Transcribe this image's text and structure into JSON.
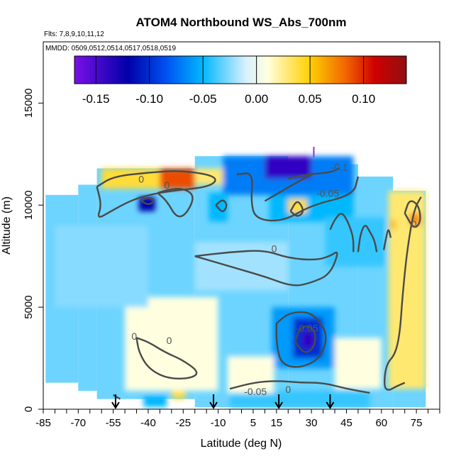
{
  "colors": {
    "ramp": [
      "#7a10e8",
      "#0000a8",
      "#0050f0",
      "#00b8ff",
      "#d8f0ff",
      "#ffffe0",
      "#ffd000",
      "#f06000",
      "#d00000",
      "#901010"
    ],
    "contour": "#4a4a4a",
    "arrow": "#000000",
    "marker": "#8a3cc8"
  },
  "chart_data": {
    "type": "heatmap",
    "title": "ATOM4 Northbound WS_Abs_700nm",
    "flights_note": "Flts: 7,8,9,10,11,12",
    "dates_note": "MMDD: 0509,0512,0514,0517,0518,0519",
    "xlabel": "Latitude (deg N)",
    "ylabel": "Altitude (m)",
    "xlim": [
      -85,
      85
    ],
    "ylim": [
      0,
      18000
    ],
    "xticks": [
      -85,
      -70,
      -55,
      -40,
      -25,
      -10,
      5,
      15,
      30,
      45,
      60,
      75
    ],
    "yticks": [
      0,
      5000,
      10000,
      15000
    ],
    "colorbar": {
      "range": [
        -0.17,
        0.14
      ],
      "ticks": [
        -0.15,
        -0.1,
        -0.05,
        0.0,
        0.05,
        0.1
      ],
      "tick_labels": [
        "-0.15",
        "-0.10",
        "-0.05",
        "0.00",
        "0.05",
        "0.10"
      ]
    },
    "envelope": [
      {
        "x": [
          -84,
          -70
        ],
        "top": 10500,
        "bottom": 1300
      },
      {
        "x": [
          -70,
          -62
        ],
        "top": 11000,
        "bottom": 900
      },
      {
        "x": [
          -62,
          -20
        ],
        "top": 11800,
        "bottom": 500
      },
      {
        "x": [
          -20,
          20
        ],
        "top": 12400,
        "bottom": 100
      },
      {
        "x": [
          20,
          50
        ],
        "top": 12000,
        "bottom": 100
      },
      {
        "x": [
          50,
          65
        ],
        "top": 11400,
        "bottom": 100
      },
      {
        "x": [
          65,
          79
        ],
        "top": 10700,
        "bottom": 100
      }
    ],
    "features": [
      {
        "x": [
          -60,
          -20
        ],
        "y": [
          10800,
          11800
        ],
        "value": 0.04
      },
      {
        "x": [
          -35,
          -20
        ],
        "y": [
          10800,
          11800
        ],
        "value": 0.09
      },
      {
        "x": [
          -20,
          -8
        ],
        "y": [
          11000,
          11800
        ],
        "value": 0.03
      },
      {
        "x": [
          -8,
          48
        ],
        "y": [
          10500,
          12400
        ],
        "value": -0.07
      },
      {
        "x": [
          10,
          30
        ],
        "y": [
          11300,
          12400
        ],
        "value": -0.14
      },
      {
        "x": [
          -14,
          -6
        ],
        "y": [
          9200,
          10600
        ],
        "value": -0.05
      },
      {
        "x": [
          -44,
          -37
        ],
        "y": [
          9700,
          10400
        ],
        "value": -0.12
      },
      {
        "x": [
          12,
          48
        ],
        "y": [
          9200,
          10500
        ],
        "value": -0.05
      },
      {
        "x": [
          20,
          28
        ],
        "y": [
          9600,
          10300
        ],
        "value": 0.04
      },
      {
        "x": [
          36,
          62
        ],
        "y": [
          7000,
          9400
        ],
        "value": -0.04
      },
      {
        "x": [
          63,
          79
        ],
        "y": [
          1000,
          10700
        ],
        "value": 0.03
      },
      {
        "x": [
          64,
          66
        ],
        "y": [
          8800,
          9300
        ],
        "value": 0.06
      },
      {
        "x": [
          72,
          77
        ],
        "y": [
          9000,
          9600
        ],
        "value": 0.07
      },
      {
        "x": [
          13,
          40
        ],
        "y": [
          2000,
          5000
        ],
        "value": -0.06
      },
      {
        "x": [
          22,
          35
        ],
        "y": [
          2500,
          4500
        ],
        "value": -0.1
      },
      {
        "x": [
          26,
          31
        ],
        "y": [
          3000,
          3800
        ],
        "value": -0.14
      },
      {
        "x": [
          -42,
          -32
        ],
        "y": [
          100,
          700
        ],
        "value": -0.05
      },
      {
        "x": [
          -5,
          55
        ],
        "y": [
          100,
          900
        ],
        "value": -0.04
      },
      {
        "x": [
          -30,
          -24
        ],
        "y": [
          500,
          900
        ],
        "value": 0.04
      },
      {
        "x": [
          -50,
          -10
        ],
        "y": [
          900,
          5500
        ],
        "value": 0.01
      },
      {
        "x": [
          -6,
          14
        ],
        "y": [
          800,
          2600
        ],
        "value": 0.01
      },
      {
        "x": [
          40,
          60
        ],
        "y": [
          1000,
          3500
        ],
        "value": 0.01
      },
      {
        "x": [
          -20,
          20
        ],
        "y": [
          5800,
          8200
        ],
        "value": -0.02
      },
      {
        "x": [
          -80,
          -40
        ],
        "y": [
          5000,
          9000
        ],
        "value": -0.025
      }
    ],
    "contours": [
      {
        "level": "0",
        "points": [
          [
            -62,
            10900
          ],
          [
            -55,
            11400
          ],
          [
            -40,
            11600
          ],
          [
            -25,
            11700
          ],
          [
            -10,
            11400
          ],
          [
            -13,
            10900
          ],
          [
            -30,
            10700
          ],
          [
            -40,
            10500
          ],
          [
            -48,
            10200
          ],
          [
            -56,
            9700
          ],
          [
            -62,
            9300
          ],
          [
            -60,
            10000
          ],
          [
            -62,
            10900
          ]
        ]
      },
      {
        "level": "0",
        "points": [
          [
            -43,
            10200
          ],
          [
            -40,
            10000
          ],
          [
            -37,
            10200
          ],
          [
            -40,
            10400
          ],
          [
            -43,
            10200
          ]
        ]
      },
      {
        "level": "0",
        "points": [
          [
            -36,
            10600
          ],
          [
            -32,
            10200
          ],
          [
            -28,
            9400
          ],
          [
            -24,
            9500
          ],
          [
            -20,
            10400
          ],
          [
            -24,
            10800
          ],
          [
            -30,
            10800
          ],
          [
            -36,
            10600
          ]
        ]
      },
      {
        "level": "0",
        "points": [
          [
            -11,
            10000
          ],
          [
            -8,
            9600
          ],
          [
            -6,
            10000
          ],
          [
            -8,
            10300
          ],
          [
            -11,
            10000
          ]
        ]
      },
      {
        "level": "-0.05",
        "points": [
          [
            -2,
            11500
          ],
          [
            5,
            11600
          ],
          [
            4,
            10200
          ],
          [
            6,
            9300
          ],
          [
            18,
            9200
          ],
          [
            30,
            10000
          ],
          [
            48,
            10500
          ],
          [
            50,
            11400
          ]
        ]
      },
      {
        "level": "-0.1",
        "points": [
          [
            20,
            11300
          ],
          [
            28,
            11500
          ],
          [
            38,
            11600
          ],
          [
            42,
            11800
          ]
        ]
      },
      {
        "level": "0",
        "points": [
          [
            10,
            10200
          ],
          [
            16,
            10600
          ],
          [
            22,
            11000
          ],
          [
            30,
            11500
          ]
        ]
      },
      {
        "level": "0",
        "points": [
          [
            21,
            9700
          ],
          [
            24,
            9400
          ],
          [
            27,
            9700
          ],
          [
            24,
            10300
          ],
          [
            21,
            9700
          ]
        ]
      },
      {
        "level": "0",
        "points": [
          [
            -20,
            7500
          ],
          [
            -5,
            7700
          ],
          [
            10,
            7800
          ],
          [
            20,
            7400
          ],
          [
            32,
            7300
          ],
          [
            38,
            7500
          ],
          [
            42,
            7800
          ],
          [
            38,
            6600
          ],
          [
            30,
            6200
          ],
          [
            22,
            6000
          ],
          [
            10,
            6500
          ],
          [
            -5,
            7000
          ],
          [
            -20,
            7500
          ]
        ]
      },
      {
        "level": "0",
        "points": [
          [
            38,
            8800
          ],
          [
            40,
            9300
          ],
          [
            43,
            9700
          ],
          [
            46,
            9100
          ],
          [
            48,
            8400
          ],
          [
            48,
            7700
          ]
        ]
      },
      {
        "level": "0",
        "points": [
          [
            50,
            7700
          ],
          [
            51,
            8600
          ],
          [
            53,
            9100
          ],
          [
            55,
            8700
          ],
          [
            57,
            8300
          ],
          [
            58,
            7700
          ]
        ]
      },
      {
        "level": "0",
        "points": [
          [
            61,
            7800
          ],
          [
            62,
            8400
          ],
          [
            63,
            8900
          ],
          [
            64,
            8400
          ]
        ]
      },
      {
        "level": "0",
        "points": [
          [
            70,
            9600
          ],
          [
            72,
            10300
          ],
          [
            76,
            10000
          ],
          [
            77,
            9200
          ],
          [
            74,
            8800
          ],
          [
            70,
            9600
          ]
        ]
      },
      {
        "level": "0",
        "points": [
          [
            77,
            10400
          ],
          [
            74,
            9800
          ],
          [
            71,
            7800
          ],
          [
            69,
            5500
          ],
          [
            68,
            3800
          ],
          [
            66,
            2700
          ],
          [
            62,
            2200
          ],
          [
            61,
            1100
          ],
          [
            63,
            900
          ],
          [
            66,
            1100
          ],
          [
            70,
            1300
          ]
        ]
      },
      {
        "level": "0",
        "points": [
          [
            -45,
            3500
          ],
          [
            -44,
            2800
          ],
          [
            -40,
            2000
          ],
          [
            -32,
            1500
          ],
          [
            -22,
            1500
          ],
          [
            -18,
            1800
          ],
          [
            -25,
            2400
          ],
          [
            -33,
            2800
          ],
          [
            -40,
            3300
          ],
          [
            -45,
            3500
          ]
        ]
      },
      {
        "level": "-0.05",
        "points": [
          [
            15,
            4200
          ],
          [
            20,
            4700
          ],
          [
            28,
            4800
          ],
          [
            33,
            4400
          ],
          [
            37,
            3600
          ],
          [
            34,
            2500
          ],
          [
            25,
            2000
          ],
          [
            17,
            2200
          ],
          [
            15,
            3200
          ],
          [
            15,
            4200
          ]
        ]
      },
      {
        "level": "-0.1",
        "points": [
          [
            23,
            3300
          ],
          [
            25,
            4000
          ],
          [
            29,
            4100
          ],
          [
            32,
            3700
          ],
          [
            31,
            3000
          ],
          [
            27,
            2700
          ],
          [
            23,
            3300
          ]
        ]
      },
      {
        "level": "-0.05",
        "points": [
          [
            -5,
            1000
          ],
          [
            5,
            1300
          ],
          [
            15,
            1400
          ],
          [
            25,
            1300
          ],
          [
            35,
            1300
          ],
          [
            45,
            1000
          ],
          [
            55,
            800
          ]
        ]
      },
      {
        "level": "0",
        "points": [
          [
            -55,
            700
          ],
          [
            -52,
            500
          ]
        ]
      }
    ],
    "contour_labels": [
      {
        "text": "0",
        "x": -43,
        "y": 11100
      },
      {
        "text": "0",
        "x": -32,
        "y": 10800
      },
      {
        "text": "0",
        "x": 14,
        "y": 7700
      },
      {
        "text": "0",
        "x": 74,
        "y": 8900
      },
      {
        "text": "0",
        "x": -46,
        "y": 3400
      },
      {
        "text": "0",
        "x": -31,
        "y": 3200
      },
      {
        "text": "0",
        "x": 20,
        "y": 800
      },
      {
        "text": "-0.05",
        "x": 37,
        "y": 10400
      },
      {
        "text": "-0.1",
        "x": 42,
        "y": 11700
      },
      {
        "text": "-0.05",
        "x": 6,
        "y": 700
      },
      {
        "text": "-0.05",
        "x": 28,
        "y": 3800
      }
    ],
    "arrows_at_latitude": [
      -54,
      -12,
      16,
      38
    ],
    "top_marker_latitude": 31
  }
}
